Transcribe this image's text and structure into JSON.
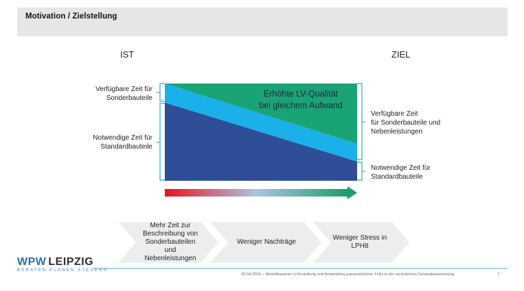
{
  "header": {
    "title": "Motivation / Zielstellung"
  },
  "columns": {
    "left": "IST",
    "right": "ZIEL"
  },
  "left_labels": {
    "top": [
      "Verfügbare Zeit für",
      "Sonderbauteile"
    ],
    "bottom": [
      "Notwendige Zeit für",
      "Standardbauteile"
    ]
  },
  "right_labels": {
    "top": [
      "Verfügbare Zeit",
      "für Sonderbauteile und",
      "Nebenleistungen"
    ],
    "bottom": [
      "Notwendige Zeit für",
      "Standardbauteile"
    ]
  },
  "diagram_text": [
    "Erhöhte LV-Qualität",
    "bei gleichem Aufwand"
  ],
  "chevrons": [
    {
      "lines": [
        "Mehr Zeit zur",
        "Beschreibung von",
        "Sonderbauteilen",
        "und",
        "Nebenleistungen"
      ]
    },
    {
      "lines": [
        "Weniger Nachträge"
      ]
    },
    {
      "lines": [
        "Weniger Stress in",
        "LPH8"
      ]
    }
  ],
  "logo": {
    "wpw": "WPW",
    "leipzig": "LEIPZIG",
    "tagline": "BERATEN  PLANEN  STEUERN"
  },
  "footer": {
    "text": "25.04.2024 – Modellbasierte LV-Erstellung und Anwendung parametrischer TLKs in der technischen Gebäudeausrüstung",
    "page": "7"
  },
  "colors": {
    "green": "#1aa374",
    "light_blue": "#1ab0ea",
    "dark_blue": "#2e4e98",
    "bracket_blue": "#33a3e0",
    "chevron_gray": "#ededed",
    "logo_blue": "#2d6db5",
    "arrow_start": "#e8141c",
    "arrow_mid": "#a9c4e4",
    "arrow_end": "#1aa06a"
  }
}
